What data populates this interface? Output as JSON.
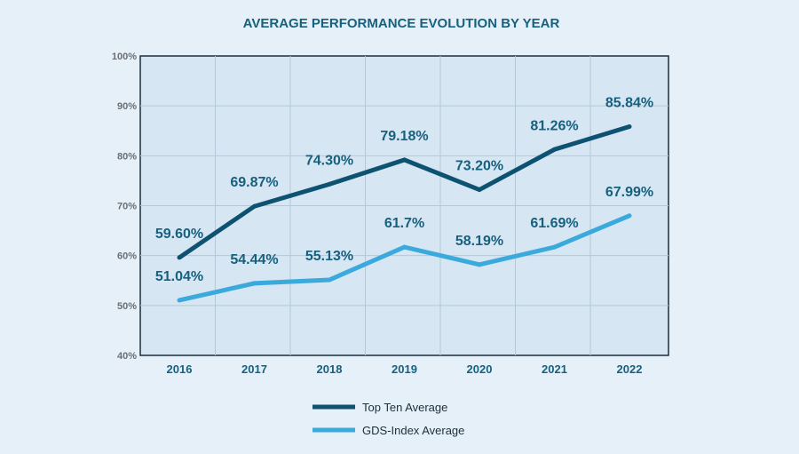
{
  "chart_data": {
    "type": "line",
    "title": "AVERAGE PERFORMANCE EVOLUTION BY YEAR",
    "categories": [
      "2016",
      "2017",
      "2018",
      "2019",
      "2020",
      "2021",
      "2022"
    ],
    "ylim": [
      40,
      100
    ],
    "yticks": [
      40,
      50,
      60,
      70,
      80,
      90,
      100
    ],
    "ytick_labels": [
      "40%",
      "50%",
      "60%",
      "70%",
      "80%",
      "90%",
      "100%"
    ],
    "grid": true,
    "legend": "bottom-center",
    "series": [
      {
        "name": "Top Ten Average",
        "color": "#0e5272",
        "values": [
          59.6,
          69.87,
          74.3,
          79.18,
          73.2,
          81.26,
          85.84
        ],
        "labels": [
          "59.60%",
          "69.87%",
          "74.30%",
          "79.18%",
          "73.20%",
          "81.26%",
          "85.84%"
        ]
      },
      {
        "name": "GDS-Index Average",
        "color": "#3aa9dc",
        "values": [
          51.04,
          54.44,
          55.13,
          61.7,
          58.19,
          61.69,
          67.99
        ],
        "labels": [
          "51.04%",
          "54.44%",
          "55.13%",
          "61.7%",
          "58.19%",
          "61.69%",
          "67.99%"
        ]
      }
    ]
  }
}
